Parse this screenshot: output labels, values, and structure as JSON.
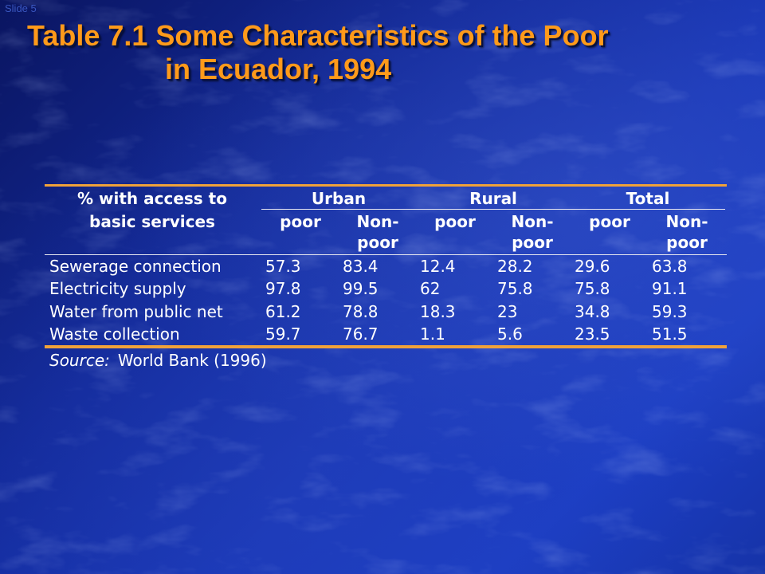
{
  "slide": {
    "number_label": "Slide 5",
    "title_line1": "Table 7.1 Some Characteristics of the Poor",
    "title_line2": "in Ecuador, 1994",
    "colors": {
      "title": "#ff9a1a",
      "background": "#1a38b8",
      "rules": "#f0a23a",
      "text": "#ffffff"
    }
  },
  "table": {
    "stub_header_line1": "% with access to",
    "stub_header_line2": "basic services",
    "groups": [
      "Urban",
      "Rural",
      "Total"
    ],
    "sub_headers": [
      {
        "line1": "poor",
        "line2": ""
      },
      {
        "line1": "Non-",
        "line2": "poor"
      },
      {
        "line1": "poor",
        "line2": ""
      },
      {
        "line1": "Non-",
        "line2": "poor"
      },
      {
        "line1": "poor",
        "line2": ""
      },
      {
        "line1": "Non-",
        "line2": "poor"
      }
    ],
    "rows": [
      {
        "label": "Sewerage connection",
        "values": [
          "57.3",
          "83.4",
          "12.4",
          "28.2",
          "29.6",
          "63.8"
        ]
      },
      {
        "label": "Electricity supply",
        "values": [
          "97.8",
          "99.5",
          "62",
          "75.8",
          "75.8",
          "91.1"
        ]
      },
      {
        "label": "Water from public net",
        "values": [
          "61.2",
          "78.8",
          "18.3",
          "23",
          "34.8",
          "59.3"
        ]
      },
      {
        "label": "Waste collection",
        "values": [
          "59.7",
          "76.7",
          "1.1",
          "5.6",
          "23.5",
          "51.5"
        ]
      }
    ],
    "source_label": "Source:",
    "source_text": "World Bank (1996)"
  }
}
